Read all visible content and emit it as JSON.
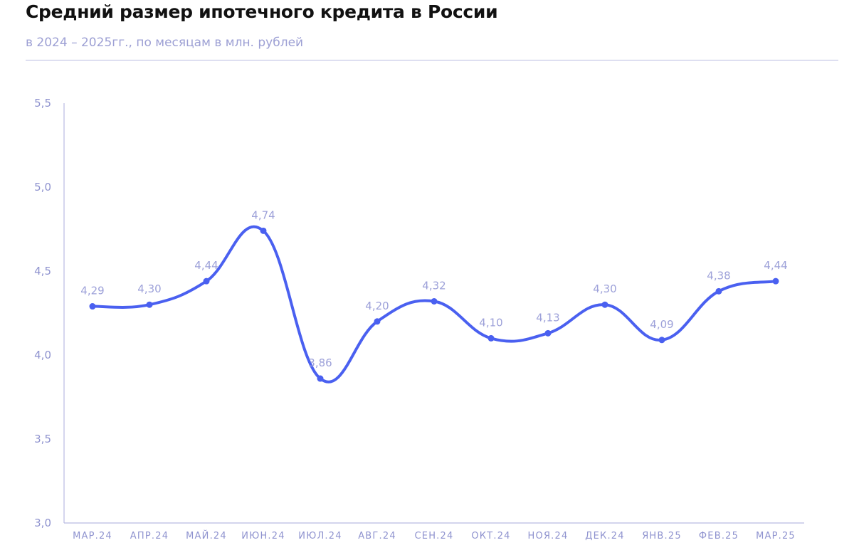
{
  "title": "Средний размер ипотечного кредита в России",
  "subtitle": "в 2024 – 2025гг., по месяцам в млн. рублей",
  "colors": {
    "line": "#4a60f0",
    "axis": "#b9bbe2",
    "tick_text": "#8f93cf",
    "label_text": "#9da1d9",
    "subtitle": "#9da0d4"
  },
  "chart_data": {
    "type": "line",
    "title": "Средний размер ипотечного кредита в России",
    "subtitle": "в 2024 – 2025гг., по месяцам в млн. рублей",
    "xlabel": "",
    "ylabel": "",
    "ylim": [
      3.0,
      5.5
    ],
    "y_ticks": [
      "3,0",
      "3,5",
      "4,0",
      "4,5",
      "5,0",
      "5,5"
    ],
    "y_tick_values": [
      3.0,
      3.5,
      4.0,
      4.5,
      5.0,
      5.5
    ],
    "grid": false,
    "categories": [
      "МАР.24",
      "АПР.24",
      "МАЙ.24",
      "ИЮН.24",
      "ИЮЛ.24",
      "АВГ.24",
      "СЕН.24",
      "ОКТ.24",
      "НОЯ.24",
      "ДЕК.24",
      "ЯНВ.25",
      "ФЕВ.25",
      "МАР.25"
    ],
    "values": [
      4.29,
      4.3,
      4.44,
      4.74,
      3.86,
      4.2,
      4.32,
      4.1,
      4.13,
      4.3,
      4.09,
      4.38,
      4.44
    ],
    "data_labels": [
      "4,29",
      "4,30",
      "4,44",
      "4,74",
      "3,86",
      "4,20",
      "4,32",
      "4,10",
      "4,13",
      "4,30",
      "4,09",
      "4,38",
      "4,44"
    ]
  }
}
